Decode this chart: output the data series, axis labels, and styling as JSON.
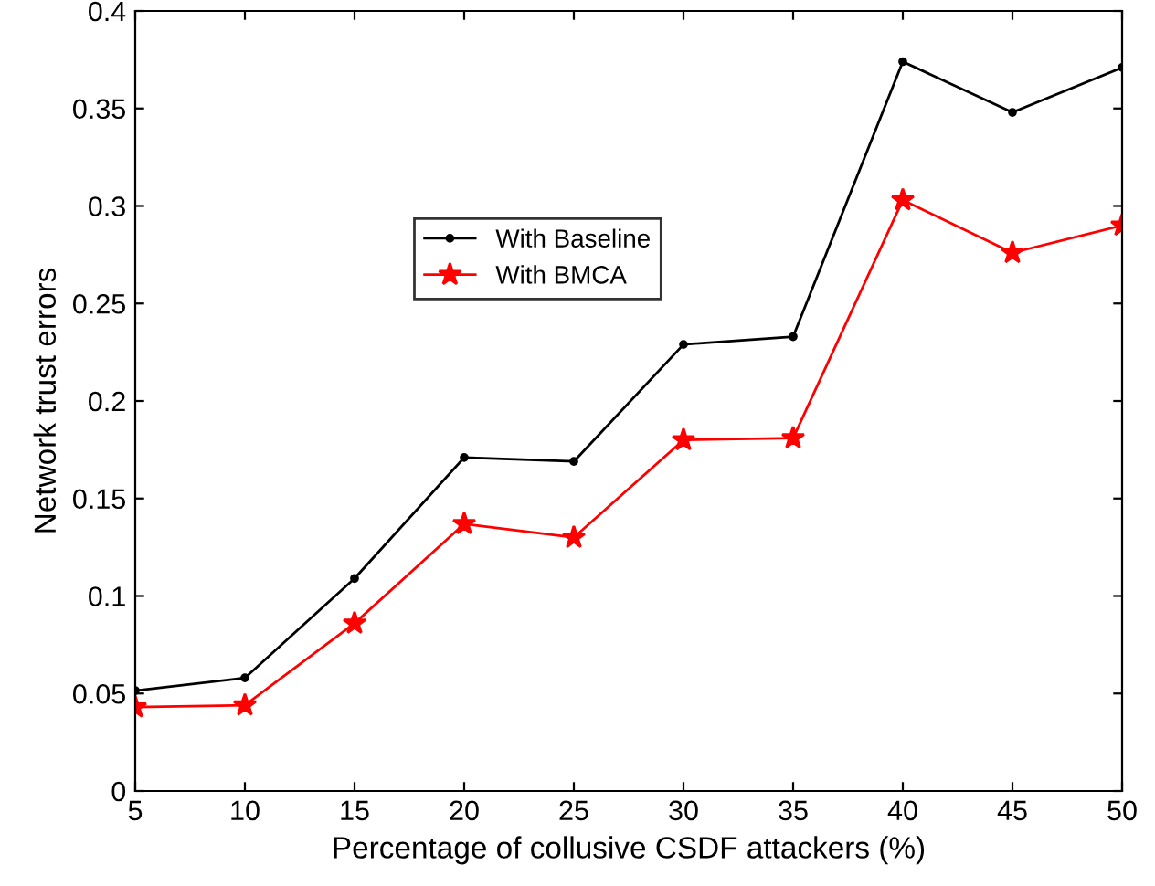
{
  "chart_data": {
    "type": "line",
    "xlabel": "Percentage of collusive CSDF attackers (%)",
    "ylabel": "Network trust errors",
    "x": [
      5,
      10,
      15,
      20,
      25,
      30,
      35,
      40,
      45,
      50
    ],
    "series": [
      {
        "name": "With Baseline",
        "color": "#000000",
        "marker": "dot",
        "values": [
          0.0515,
          0.058,
          0.109,
          0.171,
          0.169,
          0.229,
          0.233,
          0.374,
          0.348,
          0.371
        ]
      },
      {
        "name": "With BMCA",
        "color": "#ff0000",
        "marker": "star",
        "values": [
          0.043,
          0.044,
          0.086,
          0.137,
          0.13,
          0.18,
          0.181,
          0.303,
          0.276,
          0.29
        ]
      }
    ],
    "xlim": [
      5,
      50
    ],
    "xticks": [
      5,
      10,
      15,
      20,
      25,
      30,
      35,
      40,
      45,
      50
    ],
    "ylim": [
      0,
      0.4
    ],
    "yticks": [
      0,
      0.05,
      0.1,
      0.15,
      0.2,
      0.25,
      0.3,
      0.35,
      0.4
    ],
    "grid": false,
    "legend": "top left",
    "line_style": "solid"
  }
}
